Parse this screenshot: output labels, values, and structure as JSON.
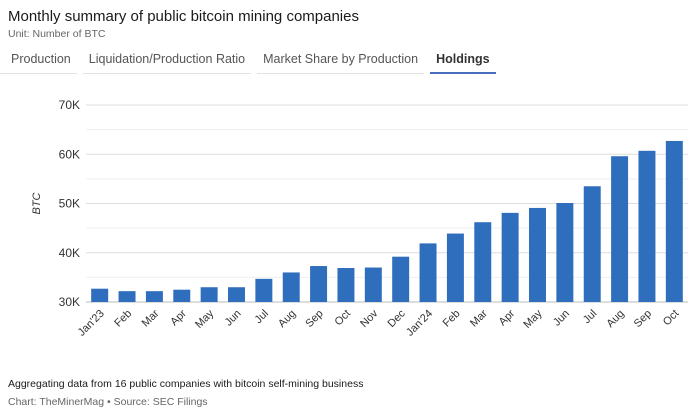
{
  "header": {
    "title": "Monthly summary of public bitcoin mining companies",
    "unit": "Unit: Number of BTC"
  },
  "tabs": [
    {
      "label": "Production",
      "active": false
    },
    {
      "label": "Liquidation/Production Ratio",
      "active": false
    },
    {
      "label": "Market Share by Production",
      "active": false
    },
    {
      "label": "Holdings",
      "active": true
    }
  ],
  "chart_data": {
    "type": "bar",
    "title": "",
    "xlabel": "",
    "ylabel": "BTC",
    "ylim": [
      30000,
      70000
    ],
    "yticks": [
      30000,
      40000,
      50000,
      60000,
      70000
    ],
    "ytick_labels": [
      "30K",
      "40K",
      "50K",
      "60K",
      "70K"
    ],
    "categories": [
      "Jan'23",
      "Feb",
      "Mar",
      "Apr",
      "May",
      "Jun",
      "Jul",
      "Aug",
      "Sep",
      "Oct",
      "Nov",
      "Dec",
      "Jan'24",
      "Feb",
      "Mar",
      "Apr",
      "May",
      "Jun",
      "Jul",
      "Aug",
      "Sep",
      "Oct"
    ],
    "values": [
      32700,
      32200,
      32200,
      32500,
      33000,
      33000,
      34700,
      36000,
      37300,
      36900,
      37000,
      39200,
      41900,
      43900,
      46200,
      48100,
      49100,
      50100,
      53500,
      59600,
      60700,
      62700
    ],
    "bar_color": "#2f6ebd",
    "grid": true
  },
  "footer": {
    "note": "Aggregating data from 16 public companies with bitcoin self-mining business",
    "credit": "Chart: TheMinerMag • Source: SEC Filings"
  }
}
